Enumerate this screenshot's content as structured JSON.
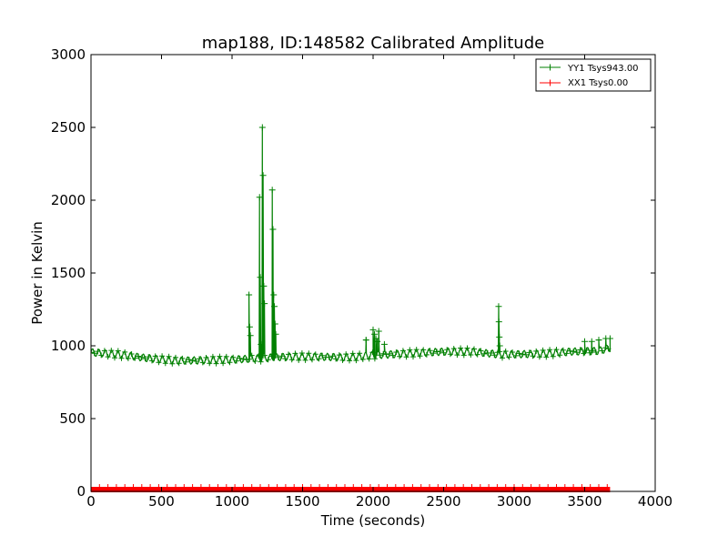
{
  "chart_data": {
    "type": "line",
    "title": "map188, ID:148582 Calibrated Amplitude",
    "xlabel": "Time (seconds)",
    "ylabel": "Power in Kelvin",
    "xlim": [
      0,
      4000
    ],
    "ylim": [
      0,
      3000
    ],
    "xticks": [
      0,
      500,
      1000,
      1500,
      2000,
      2500,
      3000,
      3500,
      4000
    ],
    "yticks": [
      0,
      500,
      1000,
      1500,
      2000,
      2500,
      3000
    ],
    "grid": false,
    "legend_position": "top-right",
    "series": [
      {
        "name": "YY1 Tsys943.00",
        "color": "#008000",
        "marker": "+",
        "baseline": [
          [
            0,
            955
          ],
          [
            200,
            940
          ],
          [
            400,
            915
          ],
          [
            600,
            898
          ],
          [
            800,
            900
          ],
          [
            1000,
            905
          ],
          [
            1200,
            915
          ],
          [
            1400,
            925
          ],
          [
            1600,
            925
          ],
          [
            1800,
            920
          ],
          [
            1900,
            925
          ],
          [
            2000,
            935
          ],
          [
            2200,
            945
          ],
          [
            2500,
            960
          ],
          [
            2700,
            960
          ],
          [
            2900,
            940
          ],
          [
            3200,
            945
          ],
          [
            3400,
            960
          ],
          [
            3600,
            965
          ],
          [
            3680,
            985
          ]
        ],
        "ripple_period": 45,
        "ripple_amplitude": 25,
        "spikes": [
          [
            1120,
            1350
          ],
          [
            1125,
            1130
          ],
          [
            1130,
            1070
          ],
          [
            1195,
            2020
          ],
          [
            1200,
            1470
          ],
          [
            1205,
            1010
          ],
          [
            1215,
            2500
          ],
          [
            1220,
            2170
          ],
          [
            1225,
            1410
          ],
          [
            1230,
            1290
          ],
          [
            1285,
            2070
          ],
          [
            1290,
            1800
          ],
          [
            1295,
            1350
          ],
          [
            1300,
            1270
          ],
          [
            1305,
            1150
          ],
          [
            1310,
            1080
          ],
          [
            1950,
            1040
          ],
          [
            2000,
            1110
          ],
          [
            2010,
            1080
          ],
          [
            2020,
            1050
          ],
          [
            2030,
            1030
          ],
          [
            2040,
            1100
          ],
          [
            2080,
            1010
          ],
          [
            2890,
            1270
          ],
          [
            2892,
            1165
          ],
          [
            2895,
            1060
          ],
          [
            2898,
            1000
          ],
          [
            3500,
            1030
          ],
          [
            3550,
            1030
          ],
          [
            3600,
            1040
          ],
          [
            3650,
            1050
          ],
          [
            3680,
            1050
          ]
        ]
      },
      {
        "name": "XX1 Tsys0.00",
        "color": "#ff0000",
        "marker": "+",
        "x_range": [
          0,
          3680
        ],
        "value": 0
      }
    ]
  }
}
